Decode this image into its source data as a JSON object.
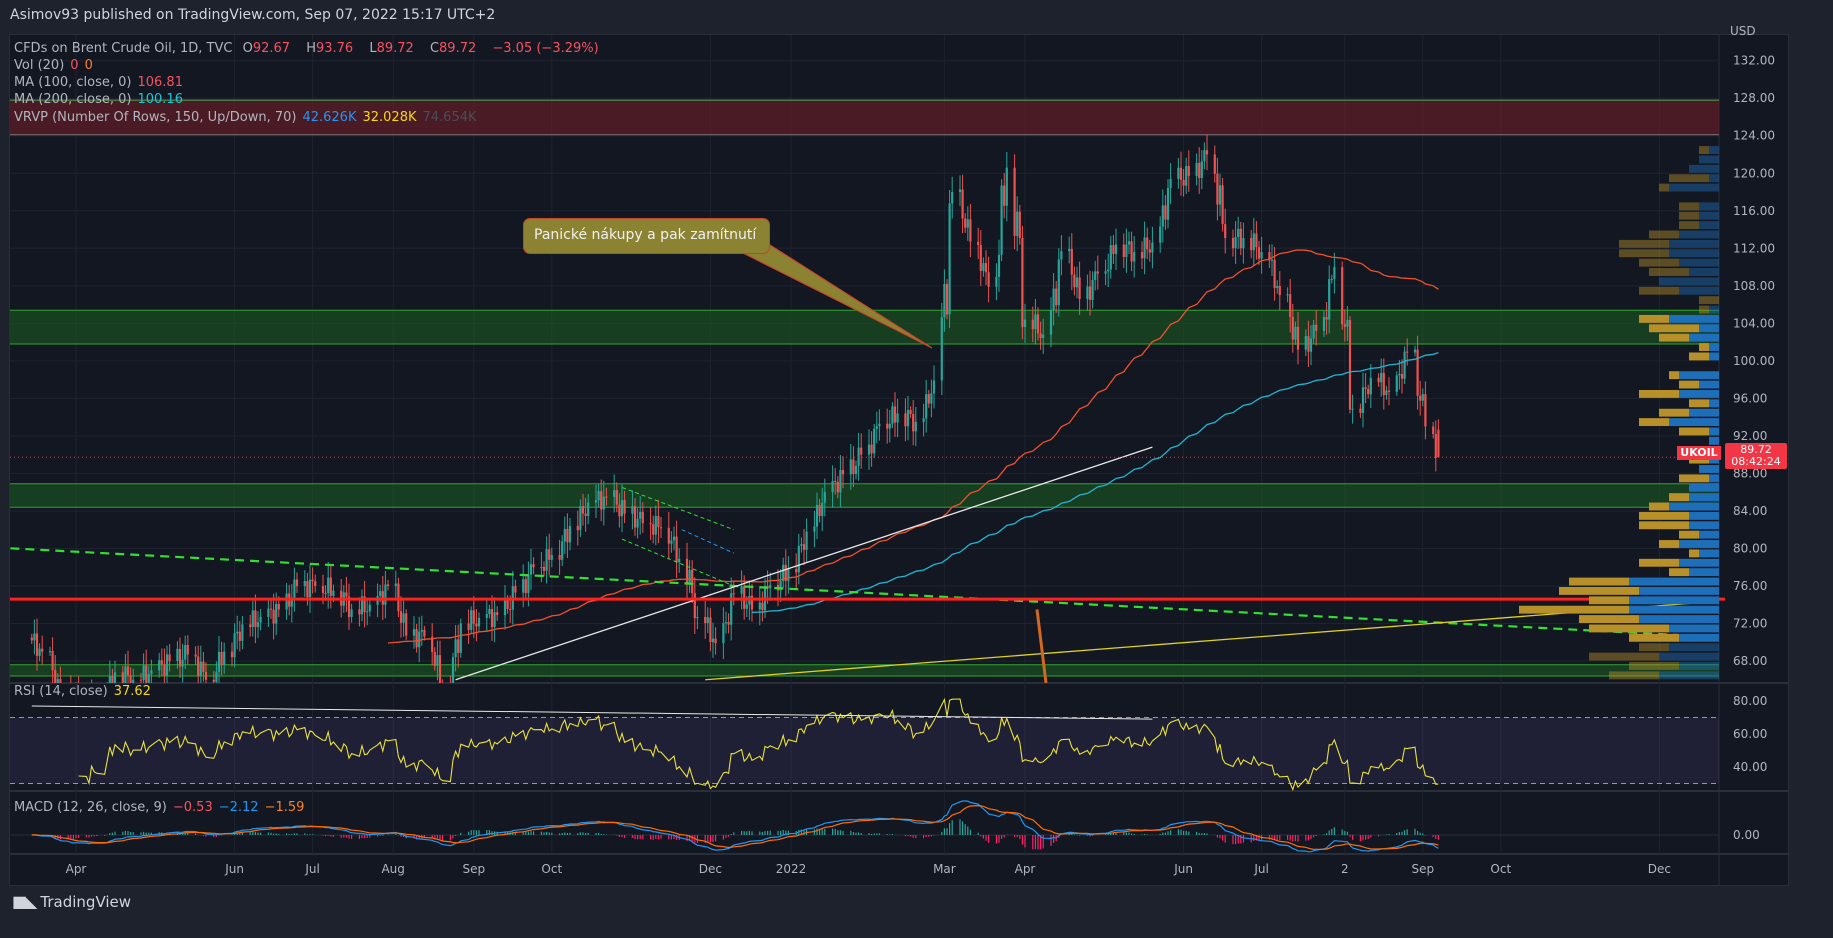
{
  "author_line": "Asimov93 published on TradingView.com, Sep 07, 2022 15:17 UTC+2",
  "legend": {
    "symbol": "CFDs on Brent Crude Oil, 1D, TVC",
    "o_label": "O",
    "o": "92.67",
    "h_label": "H",
    "h": "93.76",
    "l_label": "L",
    "l": "89.72",
    "c_label": "C",
    "c": "89.72",
    "change": "−3.05 (−3.29%)",
    "vol_label": "Vol (20)",
    "vol_1": "0",
    "vol_2": "0",
    "ma100_label": "MA (100, close, 0)",
    "ma100": "106.81",
    "ma200_label": "MA (200, close, 0)",
    "ma200": "100.16",
    "vrvp_label": "VRVP (Number Of Rows, 150, Up/Down, 70)",
    "vrvp_up": "42.626K",
    "vrvp_down": "32.028K",
    "vrvp_total": "74.654K",
    "rsi_label": "RSI (14, close)",
    "rsi": "37.62",
    "macd_label": "MACD (12, 26, close, 9)",
    "macd_hist": "−0.53",
    "macd": "−2.12",
    "macd_signal": "−1.59"
  },
  "annotation": "Panické nákupy a pak zamítnutí",
  "price_tag": {
    "symbol": "UKOIL",
    "price": "89.72",
    "countdown": "08:42:24"
  },
  "currency": "USD",
  "footer_brand": "TradingView",
  "colors": {
    "up": "#26a69a",
    "down": "#ef5350",
    "ma100": "#f0502b",
    "ma200": "#22b5d0",
    "rsi": "#e8e23a",
    "macd": "#2196f3",
    "signal": "#ff6d00",
    "zone_green": "#1b5e20",
    "zone_red": "#5a1c24",
    "support_line": "#ff2020"
  },
  "chart_data": {
    "type": "candlestick",
    "title": "CFDs on Brent Crude Oil, 1D, TVC",
    "ylabel": "USD",
    "ylim": [
      66,
      134
    ],
    "y_ticks": [
      132,
      128,
      124,
      120,
      116,
      112,
      108,
      104,
      100,
      96,
      92,
      88,
      84,
      80,
      76,
      72,
      68
    ],
    "y_tick_labels": [
      "132.00",
      "128.00",
      "124.00",
      "120.00",
      "116.00",
      "112.00",
      "108.00",
      "104.00",
      "100.00",
      "96.00",
      "92.00",
      "88.00",
      "84.00",
      "80.00",
      "76.00",
      "72.00",
      "68.00"
    ],
    "x_ticks": [
      {
        "date": "2021-04-01",
        "label": "Apr"
      },
      {
        "date": "2021-06-01",
        "label": "Jun"
      },
      {
        "date": "2021-07-01",
        "label": "Jul"
      },
      {
        "date": "2021-08-01",
        "label": "Aug"
      },
      {
        "date": "2021-09-01",
        "label": "Sep"
      },
      {
        "date": "2021-10-01",
        "label": "Oct"
      },
      {
        "date": "2021-12-01",
        "label": "Dec"
      },
      {
        "date": "2022-01-01",
        "label": "2022"
      },
      {
        "date": "2022-03-01",
        "label": "Mar"
      },
      {
        "date": "2022-04-01",
        "label": "Apr"
      },
      {
        "date": "2022-06-01",
        "label": "Jun"
      },
      {
        "date": "2022-07-01",
        "label": "Jul"
      },
      {
        "date": "2022-08-02",
        "label": "2"
      },
      {
        "date": "2022-09-01",
        "label": "Sep"
      },
      {
        "date": "2022-10-01",
        "label": "Oct"
      },
      {
        "date": "2022-12-01",
        "label": "Dec"
      }
    ],
    "weekly_start": "2021-03-15",
    "weekly_closes": [
      69,
      64,
      64,
      63,
      66.8,
      66,
      67,
      68,
      68.7,
      66,
      69,
      71.9,
      72.7,
      73.5,
      76,
      76,
      75.5,
      73.5,
      74,
      76,
      70.7,
      70.6,
      65,
      72,
      72.6,
      72.9,
      75.3,
      78,
      79.3,
      82.4,
      84.9,
      85.5,
      83.7,
      82.7,
      82.2,
      78.9,
      72.7,
      69.9,
      75.2,
      73.5,
      76.1,
      77.8,
      81.8,
      86,
      87.9,
      90,
      93.3,
      94.4,
      93.5,
      97.9,
      118,
      112.7,
      107.9,
      120.6,
      104.4,
      102.8,
      111.7,
      106.6,
      109.3,
      112.4,
      111.6,
      112.6,
      119.4,
      119.7,
      122,
      113.1,
      113.1,
      111.6,
      107,
      101.2,
      103.2,
      110,
      94.9,
      98.2,
      96.7,
      100.9,
      93,
      89.72
    ],
    "zones": [
      {
        "name": "resistance-zone-red",
        "from": 124.1,
        "to": 127.8
      },
      {
        "name": "zone-green-104",
        "from": 101.8,
        "to": 105.4
      },
      {
        "name": "zone-green-86",
        "from": 84.4,
        "to": 86.9
      },
      {
        "name": "zone-green-67",
        "from": 66.4,
        "to": 67.6
      }
    ],
    "support_level": 74.6,
    "trendlines": [
      {
        "name": "green-dashed-trendline",
        "from": [
          "2021-03-01",
          80.1
        ],
        "to": [
          "2022-12-20",
          70.6
        ]
      },
      {
        "name": "white-trendline",
        "from": [
          "2021-08-25",
          66
        ],
        "to": [
          "2022-05-20",
          90.8
        ]
      },
      {
        "name": "yellow-trendline",
        "from": [
          "2021-11-29",
          66
        ],
        "to": [
          "2022-12-20",
          74.3
        ]
      }
    ],
    "rsi": {
      "ticks": [
        80,
        60,
        40
      ],
      "tick_labels": [
        "80.00",
        "60.00",
        "40.00"
      ],
      "upper": 70,
      "lower": 30
    },
    "macd": {
      "ticks": [
        0
      ],
      "tick_labels": [
        "0.00"
      ]
    }
  }
}
